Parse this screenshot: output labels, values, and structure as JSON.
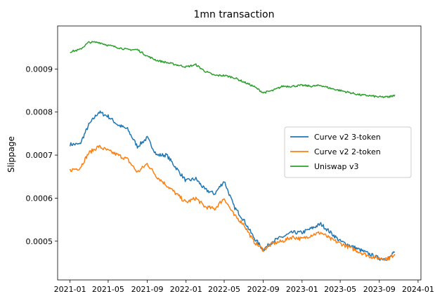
{
  "chart_data": {
    "type": "line",
    "title": "1mn transaction",
    "xlabel": "",
    "ylabel": "Slippage",
    "xlim": [
      "2020-11-23",
      "2024-01-10"
    ],
    "ylim": [
      0.00041,
      0.001
    ],
    "x_ticks": [
      "2021-01",
      "2021-05",
      "2021-09",
      "2022-01",
      "2022-05",
      "2022-09",
      "2023-01",
      "2023-05",
      "2023-09",
      "2024-01"
    ],
    "y_ticks": [
      {
        "value": 0.0005,
        "label": "0.0005"
      },
      {
        "value": 0.0006,
        "label": "0.0006"
      },
      {
        "value": 0.0007,
        "label": "0.0007"
      },
      {
        "value": 0.0008,
        "label": "0.0008"
      },
      {
        "value": 0.0009,
        "label": "0.0009"
      }
    ],
    "grid": false,
    "legend_position": "right",
    "x": [
      "2021-01-01",
      "2021-02-01",
      "2021-03-01",
      "2021-04-01",
      "2021-05-01",
      "2021-06-01",
      "2021-07-01",
      "2021-08-01",
      "2021-09-01",
      "2021-10-01",
      "2021-11-01",
      "2021-12-01",
      "2022-01-01",
      "2022-02-01",
      "2022-03-01",
      "2022-04-01",
      "2022-05-01",
      "2022-06-01",
      "2022-07-01",
      "2022-08-01",
      "2022-09-01",
      "2022-10-01",
      "2022-11-01",
      "2022-12-01",
      "2023-01-01",
      "2023-02-01",
      "2023-03-01",
      "2023-04-01",
      "2023-05-01",
      "2023-06-01",
      "2023-07-01",
      "2023-08-01",
      "2023-09-01",
      "2023-10-01",
      "2023-10-20"
    ],
    "series": [
      {
        "name": "Curve v2 3-token",
        "color": "#1f77b4",
        "values": [
          0.000725,
          0.000725,
          0.00077,
          0.0008,
          0.00079,
          0.00077,
          0.00076,
          0.00072,
          0.00074,
          0.0007,
          0.0007,
          0.00067,
          0.00064,
          0.000645,
          0.00062,
          0.00061,
          0.00064,
          0.00058,
          0.00055,
          0.00051,
          0.00048,
          0.0005,
          0.00051,
          0.00052,
          0.00052,
          0.00053,
          0.00054,
          0.00052,
          0.0005,
          0.00049,
          0.00048,
          0.00047,
          0.00046,
          0.00046,
          0.000475
        ]
      },
      {
        "name": "Curve v2 2-token",
        "color": "#ff7f0e",
        "values": [
          0.000665,
          0.00067,
          0.000705,
          0.00072,
          0.00071,
          0.0007,
          0.00069,
          0.00066,
          0.00068,
          0.00065,
          0.00063,
          0.00061,
          0.00059,
          0.0006,
          0.00058,
          0.000575,
          0.0006,
          0.00056,
          0.00054,
          0.0005,
          0.00048,
          0.000495,
          0.0005,
          0.00051,
          0.000505,
          0.000515,
          0.00052,
          0.000505,
          0.000495,
          0.000485,
          0.000475,
          0.000465,
          0.00046,
          0.00046,
          0.00047
        ]
      },
      {
        "name": "Uniswap v3",
        "color": "#2ca02c",
        "values": [
          0.00094,
          0.000945,
          0.000962,
          0.000962,
          0.000955,
          0.00095,
          0.000945,
          0.000945,
          0.00093,
          0.00092,
          0.000915,
          0.00091,
          0.000905,
          0.00091,
          0.000895,
          0.000885,
          0.000885,
          0.00088,
          0.00087,
          0.00086,
          0.000845,
          0.00085,
          0.00086,
          0.00086,
          0.000862,
          0.00086,
          0.000862,
          0.000855,
          0.00085,
          0.000845,
          0.00084,
          0.000838,
          0.000835,
          0.000835,
          0.00084
        ]
      }
    ]
  }
}
